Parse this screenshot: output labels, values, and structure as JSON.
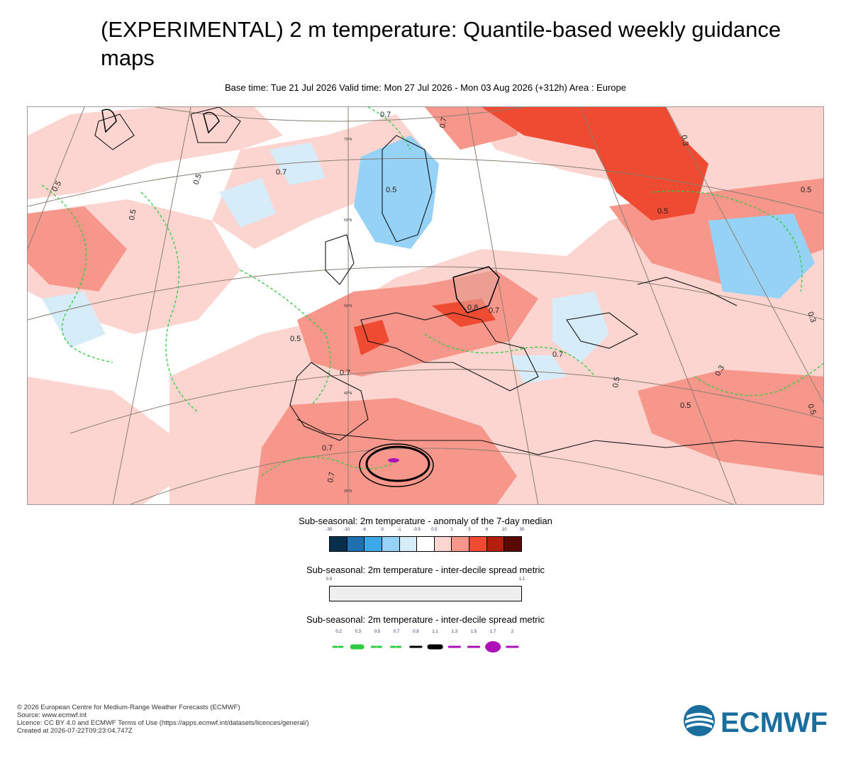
{
  "header": {
    "title": "(EXPERIMENTAL) 2 m temperature: Quantile-based weekly guidance maps",
    "subtitle": "Base time: Tue 21 Jul 2026 Valid time: Mon 27 Jul 2026 - Mon 03 Aug 2026 (+312h) Area : Europe"
  },
  "map": {
    "contour_labels": [
      "0.7",
      "0.5",
      "0.5",
      "0.5",
      "0.7",
      "0.5",
      "0.7",
      "0.7",
      "0.5",
      "0.7",
      "0.8",
      "0.7",
      "0.5",
      "0.3",
      "0.5",
      "0.3",
      "0.5",
      "0.3",
      "0.5",
      "0.7",
      "0.7",
      "0.5"
    ],
    "graticule_labels": [
      "70°N",
      "60°N",
      "50°N",
      "40°N",
      "30°N"
    ]
  },
  "legend1": {
    "title": "Sub-seasonal: 2m temperature - anomaly of the 7-day median",
    "ticks": [
      "-30",
      "-10",
      "-6",
      "-3",
      "-1",
      "-0.5",
      "0.5",
      "1",
      "3",
      "6",
      "10",
      "30"
    ],
    "colors": [
      "#08304c",
      "#1f70b0",
      "#3fa9e8",
      "#96d2f5",
      "#d6ecf8",
      "#ffffff",
      "#fdd5d0",
      "#f7978b",
      "#ef4b32",
      "#b51d0c",
      "#5a0a05"
    ]
  },
  "legend2": {
    "title": "Sub-seasonal: 2m temperature - inter-decile spread metric",
    "ticks": [
      "0.9",
      "1.1"
    ],
    "color": "#efefef"
  },
  "legend3": {
    "title": "Sub-seasonal: 2m temperature - inter-decile spread metric",
    "ticks": [
      "0.2",
      "0.3",
      "0.5",
      "0.7",
      "0.9",
      "1.1",
      "1.3",
      "1.5",
      "1.7",
      "2"
    ],
    "line_colors": [
      "#2ecc40",
      "#2ecc40",
      "#2ecc40",
      "#2ecc40",
      "#000000",
      "#000000",
      "#b010b8",
      "#b010b8",
      "#b010b8",
      "#b010b8"
    ]
  },
  "footer": {
    "copyright": "© 2026 European Centre for Medium-Range Weather Forecasts (ECMWF)",
    "source": "Source: www.ecmwf.int",
    "licence": "Licence: CC BY 4.0 and ECMWF Terms of Use (https://apps.ecmwf.int/datasets/licences/general/)",
    "created": "Created at 2026-07-22T09:23:04.747Z"
  },
  "logo": {
    "text": "ECMWF",
    "color": "#1a6e9e"
  }
}
